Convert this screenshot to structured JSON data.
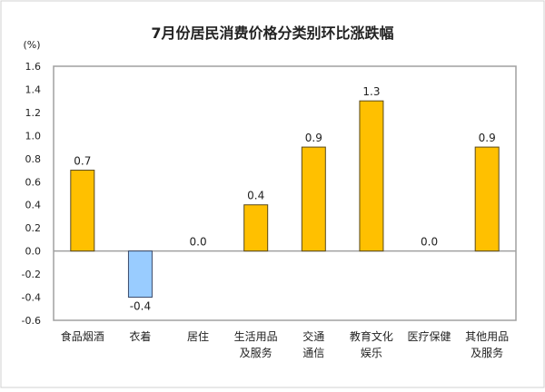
{
  "chart_data": {
    "type": "bar",
    "title": "7月份居民消费价格分类别环比涨跌幅",
    "ylabel": "(%)",
    "xlabel": "",
    "ylim": [
      -0.6,
      1.6
    ],
    "yticks": [
      "1.6",
      "1.4",
      "1.2",
      "1.0",
      "0.8",
      "0.6",
      "0.4",
      "0.2",
      "0.0",
      "-0.2",
      "-0.4",
      "-0.6"
    ],
    "grid": false,
    "categories": [
      [
        "食品烟酒"
      ],
      [
        "衣着"
      ],
      [
        "居住"
      ],
      [
        "生活用品",
        "及服务"
      ],
      [
        "交通",
        "通信"
      ],
      [
        "教育文化",
        "娱乐"
      ],
      [
        "医疗保健"
      ],
      [
        "其他用品",
        "及服务"
      ]
    ],
    "values": [
      0.7,
      -0.4,
      0.0,
      0.4,
      0.9,
      1.3,
      0.0,
      0.9
    ],
    "data_labels": [
      "0.7",
      "-0.4",
      "0.0",
      "0.4",
      "0.9",
      "1.3",
      "0.0",
      "0.9"
    ],
    "colors": {
      "positive": "#FFC000",
      "negative": "#99CCFF",
      "bar_border": "#5a4a1a",
      "axis": "#a0a0a0"
    }
  }
}
